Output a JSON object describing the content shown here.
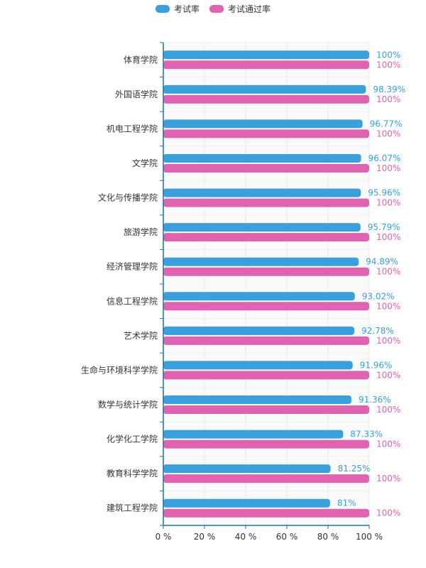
{
  "chart_data": {
    "type": "bar",
    "orientation": "horizontal",
    "categories": [
      "体育学院",
      "外国语学院",
      "机电工程学院",
      "文学院",
      "文化与传播学院",
      "旅游学院",
      "经济管理学院",
      "信息工程学院",
      "艺术学院",
      "生命与环境科学学院",
      "数学与统计学院",
      "化学化工学院",
      "教育科学学院",
      "建筑工程学院"
    ],
    "series": [
      {
        "name": "考试率",
        "color": "#3a9fdb",
        "values": [
          100,
          98.39,
          96.77,
          96.07,
          95.96,
          95.79,
          94.89,
          93.02,
          92.78,
          91.96,
          91.36,
          87.33,
          81.25,
          81
        ],
        "labels": [
          "100%",
          "98.39%",
          "96.77%",
          "96.07%",
          "95.96%",
          "95.79%",
          "94.89%",
          "93.02%",
          "92.78%",
          "91.96%",
          "91.36%",
          "87.33%",
          "81.25%",
          "81%"
        ]
      },
      {
        "name": "考试通过率",
        "color": "#e063b1",
        "values": [
          100,
          100,
          100,
          100,
          100,
          100,
          100,
          100,
          100,
          100,
          100,
          100,
          100,
          100
        ],
        "labels": [
          "100%",
          "100%",
          "100%",
          "100%",
          "100%",
          "100%",
          "100%",
          "100%",
          "100%",
          "100%",
          "100%",
          "100%",
          "100%",
          "100%"
        ]
      }
    ],
    "x_ticks": [
      "0 %",
      "20 %",
      "40 %",
      "60 %",
      "80 %",
      "100 %"
    ],
    "xlim": [
      0,
      100
    ],
    "grid": true,
    "legend_position": "top-center"
  }
}
